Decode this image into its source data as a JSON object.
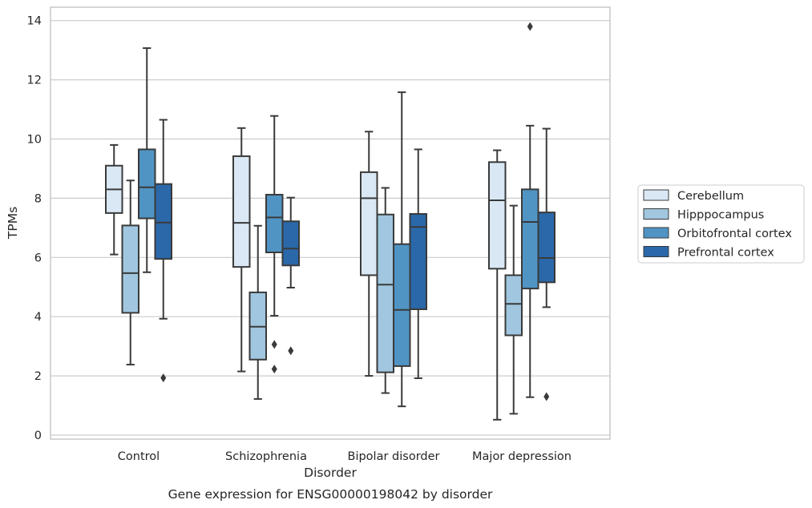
{
  "chart_data": {
    "type": "box",
    "xlabel": "Disorder",
    "ylabel": "TPMs",
    "caption": "Gene expression for ENSG00000198042 by disorder",
    "categories": [
      "Control",
      "Schizophrenia",
      "Bipolar disorder",
      "Major depression"
    ],
    "ylim": [
      -0.1,
      14.5
    ],
    "yticks": [
      "0",
      "2",
      "4",
      "6",
      "8",
      "10",
      "12",
      "14"
    ],
    "grid": "horizontal",
    "legend_position": "right",
    "series": [
      {
        "name": "Cerebellum",
        "color": "#dae8f5",
        "boxes": [
          {
            "whisker_low": 6.1,
            "q1": 7.5,
            "median": 8.3,
            "q3": 9.1,
            "whisker_high": 9.8,
            "outliers": []
          },
          {
            "whisker_low": 2.15,
            "q1": 5.68,
            "median": 7.17,
            "q3": 9.42,
            "whisker_high": 10.37,
            "outliers": []
          },
          {
            "whisker_low": 2.0,
            "q1": 5.4,
            "median": 8.0,
            "q3": 8.88,
            "whisker_high": 10.25,
            "outliers": []
          },
          {
            "whisker_low": 0.52,
            "q1": 5.62,
            "median": 7.93,
            "q3": 9.22,
            "whisker_high": 9.62,
            "outliers": []
          }
        ]
      },
      {
        "name": "Hipppocampus",
        "color": "#a0c7df",
        "boxes": [
          {
            "whisker_low": 2.38,
            "q1": 4.13,
            "median": 5.47,
            "q3": 7.08,
            "whisker_high": 8.6,
            "outliers": []
          },
          {
            "whisker_low": 1.22,
            "q1": 2.55,
            "median": 3.66,
            "q3": 4.82,
            "whisker_high": 7.07,
            "outliers": []
          },
          {
            "whisker_low": 1.42,
            "q1": 2.12,
            "median": 5.08,
            "q3": 7.45,
            "whisker_high": 8.35,
            "outliers": []
          },
          {
            "whisker_low": 0.72,
            "q1": 3.37,
            "median": 4.43,
            "q3": 5.4,
            "whisker_high": 7.75,
            "outliers": []
          }
        ]
      },
      {
        "name": "Orbitofrontal cortex",
        "color": "#5094c4",
        "boxes": [
          {
            "whisker_low": 5.5,
            "q1": 7.32,
            "median": 8.37,
            "q3": 9.65,
            "whisker_high": 13.07,
            "outliers": []
          },
          {
            "whisker_low": 4.03,
            "q1": 6.17,
            "median": 7.35,
            "q3": 8.12,
            "whisker_high": 10.78,
            "outliers": [
              3.06,
              2.23
            ]
          },
          {
            "whisker_low": 0.97,
            "q1": 2.33,
            "median": 4.23,
            "q3": 6.45,
            "whisker_high": 11.58,
            "outliers": []
          },
          {
            "whisker_low": 1.28,
            "q1": 4.95,
            "median": 7.2,
            "q3": 8.3,
            "whisker_high": 10.45,
            "outliers": [
              13.8
            ]
          }
        ]
      },
      {
        "name": "Prefrontal cortex",
        "color": "#2a68aa",
        "boxes": [
          {
            "whisker_low": 3.93,
            "q1": 5.95,
            "median": 7.18,
            "q3": 8.48,
            "whisker_high": 10.65,
            "outliers": [
              1.93
            ]
          },
          {
            "whisker_low": 4.98,
            "q1": 5.73,
            "median": 6.3,
            "q3": 7.22,
            "whisker_high": 8.02,
            "outliers": [
              2.85
            ]
          },
          {
            "whisker_low": 1.92,
            "q1": 4.25,
            "median": 7.03,
            "q3": 7.47,
            "whisker_high": 9.65,
            "outliers": []
          },
          {
            "whisker_low": 4.32,
            "q1": 5.16,
            "median": 5.98,
            "q3": 7.52,
            "whisker_high": 10.35,
            "outliers": [
              1.3
            ]
          }
        ]
      }
    ]
  }
}
